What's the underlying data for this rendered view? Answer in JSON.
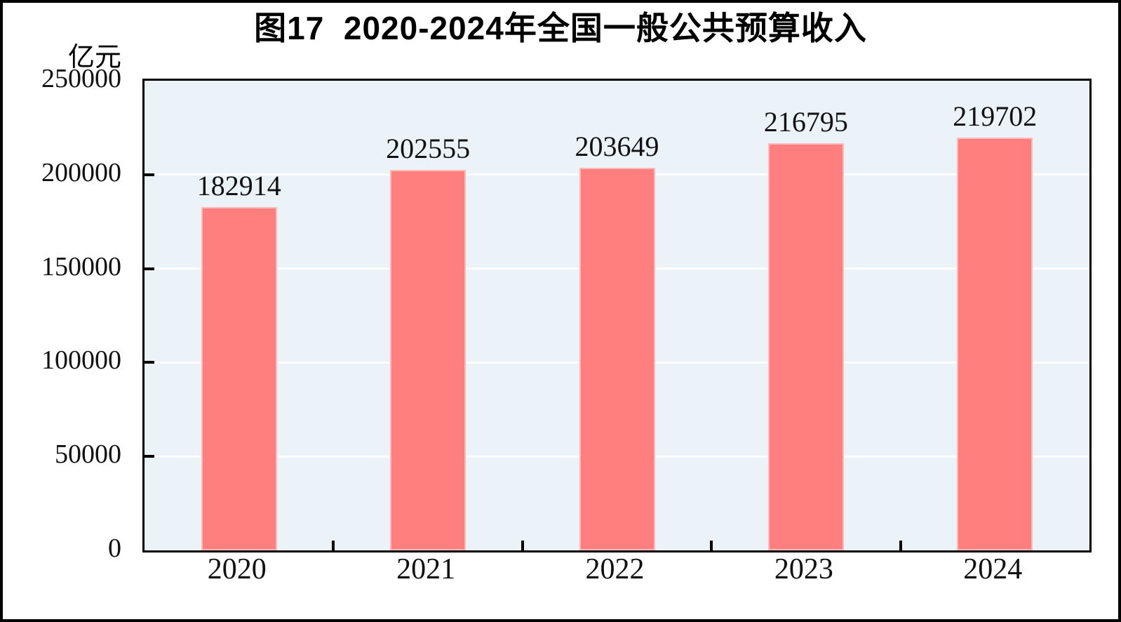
{
  "chart_data": {
    "type": "bar",
    "title": "图17  2020-2024年全国一般公共预算收入",
    "unit_label": "亿元",
    "categories": [
      "2020",
      "2021",
      "2022",
      "2023",
      "2024"
    ],
    "values": [
      182914,
      202555,
      203649,
      216795,
      219702
    ],
    "value_labels": [
      "182914",
      "202555",
      "203649",
      "216795",
      "219702"
    ],
    "ylabel": "亿元",
    "ylim": [
      0,
      250000
    ],
    "ytick_interval": 50000,
    "ytick_labels": [
      "250000",
      "200000",
      "150000",
      "100000",
      "50000",
      "0"
    ],
    "grid": "horizontal",
    "legend": "none",
    "colors": {
      "bar_fill": "#ff7f7f",
      "bar_edge": "#ffb9b9",
      "plot_background": "#ecf3f8",
      "gridline": "#ffffff",
      "axis": "#000000",
      "text": "#111111",
      "page_background": "#ffffff",
      "outer_border": "#000000"
    }
  }
}
